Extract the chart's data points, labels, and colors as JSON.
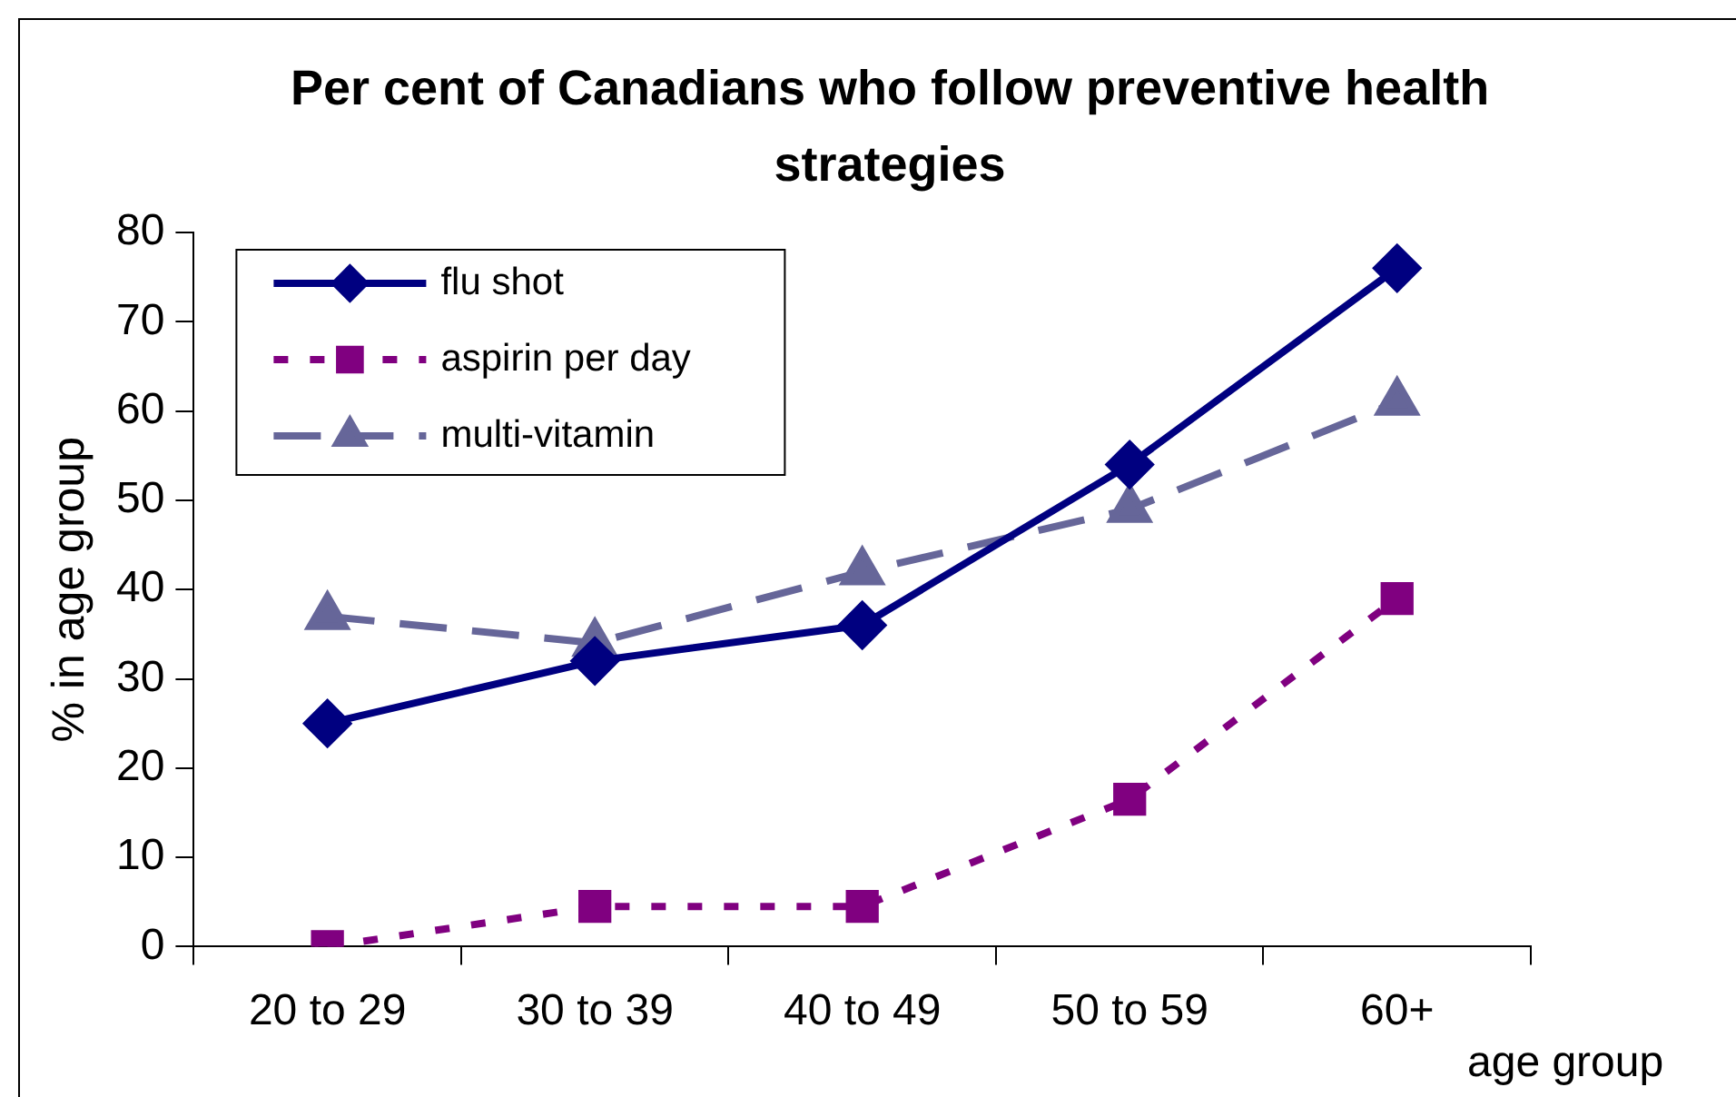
{
  "chart_data": {
    "type": "line",
    "title": "Per cent of Canadians who follow preventive health strategies",
    "xlabel": "age group",
    "ylabel": "% in age group",
    "categories": [
      "20 to 29",
      "30 to 39",
      "40 to 49",
      "50 to 59",
      "60+"
    ],
    "series": [
      {
        "name": "flu shot",
        "color": "#000080",
        "values": [
          25,
          32,
          36,
          54,
          76
        ],
        "marker": "diamond",
        "line_style": "solid"
      },
      {
        "name": "aspirin per day",
        "color": "#800080",
        "values": [
          0,
          4.5,
          4.5,
          16.5,
          39
        ],
        "marker": "square",
        "line_style": "dotted"
      },
      {
        "name": "multi-vitamin",
        "color": "#666699",
        "values": [
          37,
          34,
          42,
          49,
          61
        ],
        "marker": "triangle",
        "line_style": "dashed"
      }
    ],
    "ylim": [
      0,
      80
    ],
    "yticks": [
      0,
      10,
      20,
      30,
      40,
      50,
      60,
      70,
      80
    ],
    "grid": false,
    "legend": "top left"
  }
}
